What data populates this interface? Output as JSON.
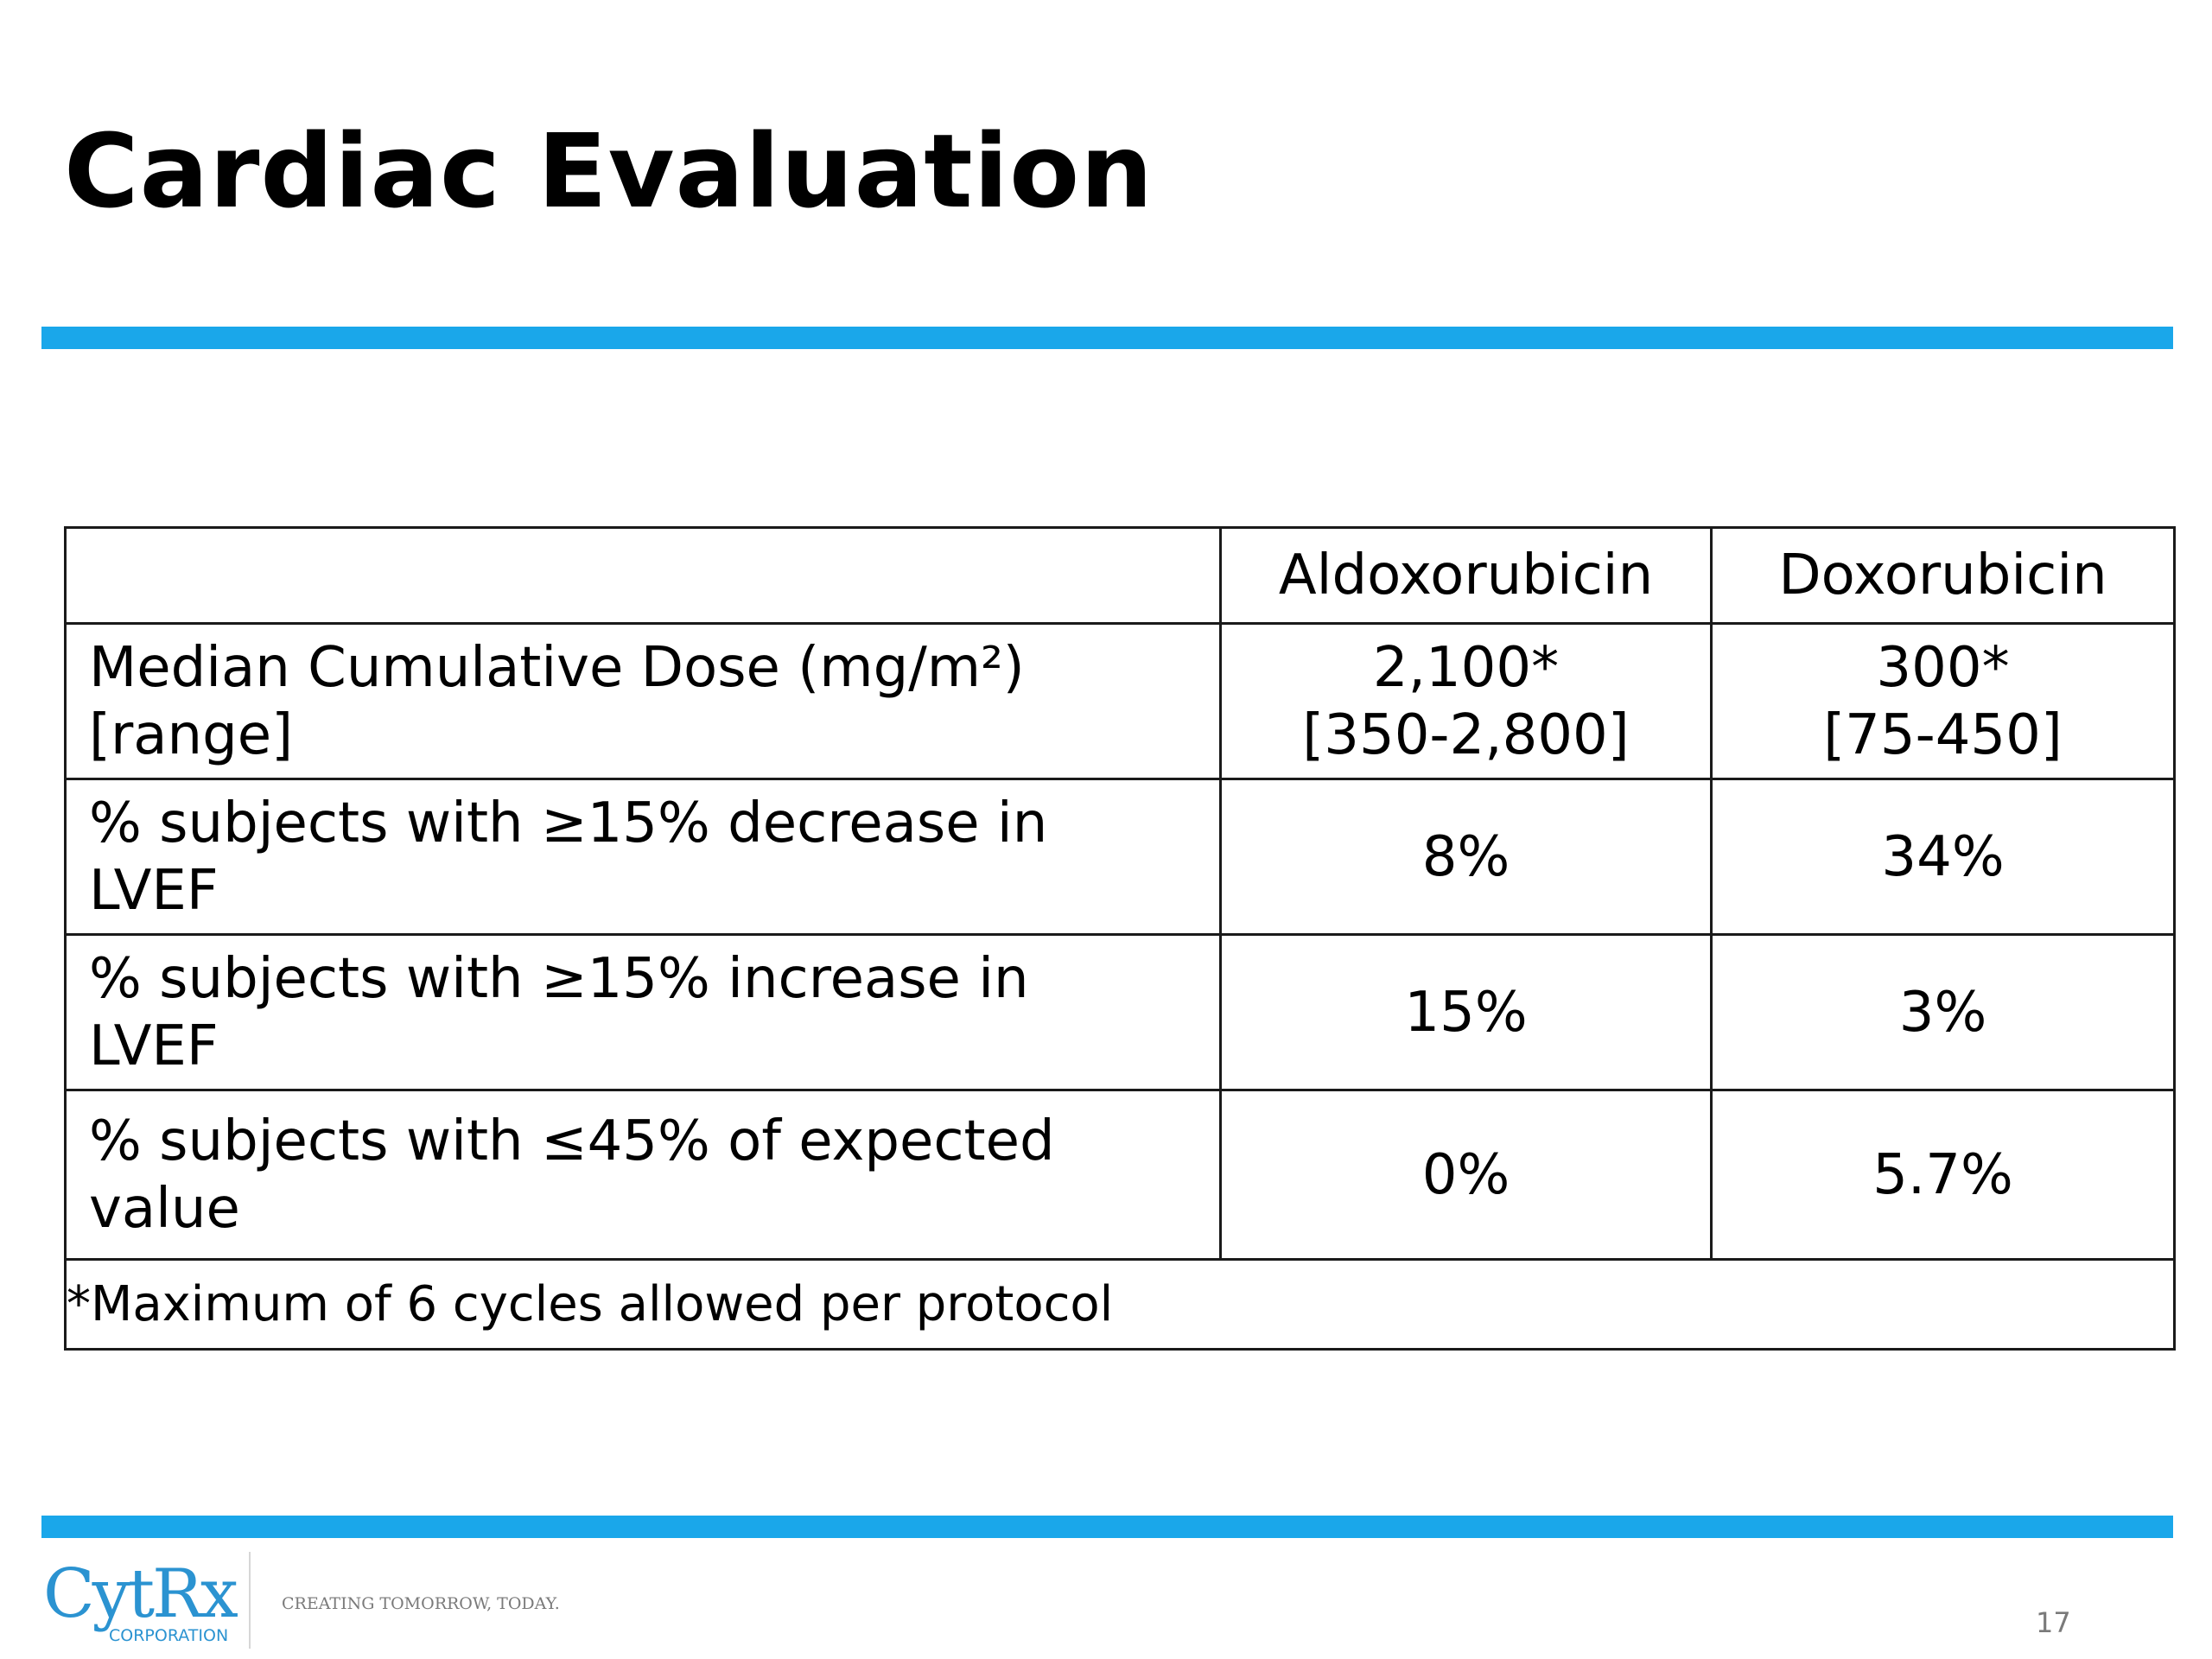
{
  "title": "Cardiac Evaluation",
  "colors": {
    "accent_rule": "#1aa7ea",
    "logo_blue": "#2b93d1",
    "text": "#000000",
    "footer_gray": "#7a7a7a"
  },
  "table": {
    "header": {
      "corner": "",
      "columns": [
        "Aldoxorubicin",
        "Doxorubicin"
      ]
    },
    "rows": [
      {
        "label": [
          "Median Cumulative Dose (mg/m²)",
          "[range]"
        ],
        "aldoxorubicin": [
          "2,100*",
          "[350-2,800]"
        ],
        "doxorubicin": [
          "300*",
          "[75-450]"
        ]
      },
      {
        "label": [
          "% subjects with ≥15% decrease in",
          "LVEF"
        ],
        "aldoxorubicin": [
          "8%"
        ],
        "doxorubicin": [
          "34%"
        ]
      },
      {
        "label": [
          "% subjects with ≥15% increase in",
          "LVEF"
        ],
        "aldoxorubicin": [
          "15%"
        ],
        "doxorubicin": [
          "3%"
        ]
      },
      {
        "label": [
          "% subjects with ≤45% of expected",
          "value"
        ],
        "aldoxorubicin": [
          "0%"
        ],
        "doxorubicin": [
          "5.7%"
        ]
      }
    ],
    "footnote": "*Maximum of 6 cycles allowed per protocol"
  },
  "footer": {
    "logo_text": "CytRx",
    "logo_subtext": "CORPORATION",
    "tagline": "CREATING TOMORROW, TODAY.",
    "page_number": "17"
  }
}
